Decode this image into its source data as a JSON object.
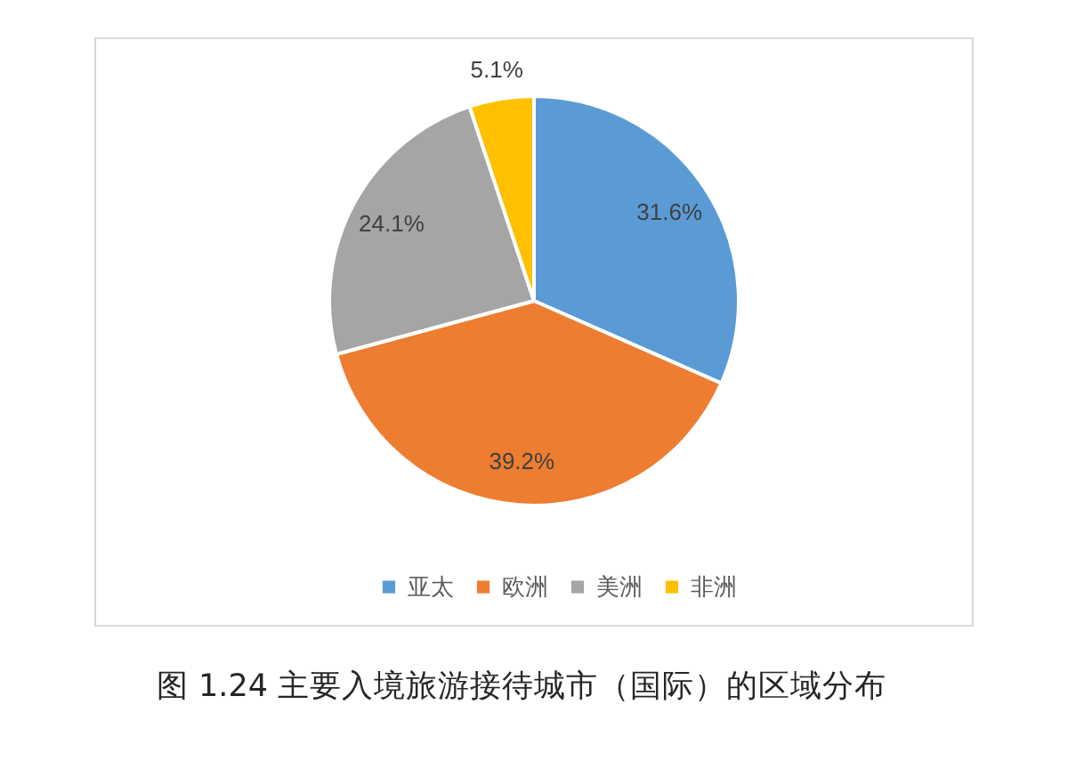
{
  "chart_data": {
    "type": "pie",
    "title": "图 1.24 主要入境旅游接待城市（国际）的区域分布",
    "categories": [
      "亚太",
      "欧洲",
      "美洲",
      "非洲"
    ],
    "values": [
      31.6,
      39.2,
      24.1,
      5.1
    ],
    "value_labels": [
      "31.6%",
      "39.2%",
      "24.1%",
      "5.1%"
    ],
    "colors": [
      "#5b9bd5",
      "#ed7d31",
      "#a5a5a5",
      "#ffc000"
    ],
    "legend": "bottom"
  }
}
